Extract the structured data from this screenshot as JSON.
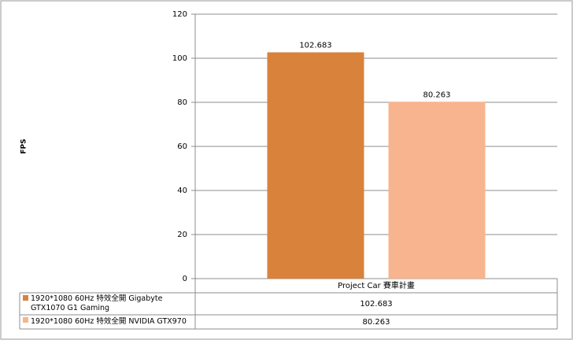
{
  "chart_data": {
    "type": "bar",
    "y_label": "FPS",
    "categories": [
      "Project Car 賽車計畫"
    ],
    "series": [
      {
        "name": "1920*1080 60Hz 特效全開 Gigabyte GTX1070 G1 Gaming",
        "color": "#d9823b",
        "values": [
          102.683
        ]
      },
      {
        "name": "1920*1080 60Hz 特效全開 NVIDIA GTX970",
        "color": "#f7b48e",
        "values": [
          80.263
        ]
      }
    ],
    "ylim": [
      0,
      120
    ],
    "yticks": [
      0,
      20,
      40,
      60,
      80,
      100,
      120
    ],
    "grid": true,
    "data_table": true
  }
}
